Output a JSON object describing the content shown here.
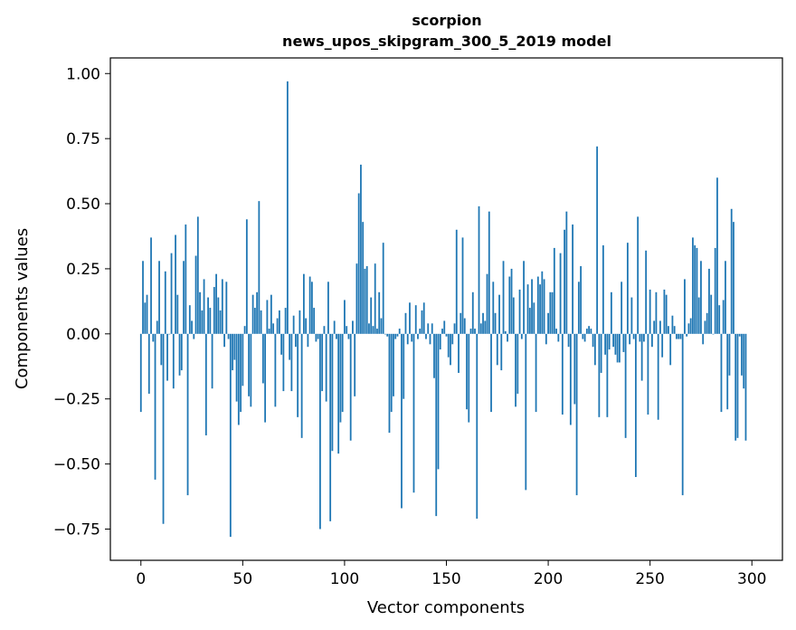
{
  "chart_data": {
    "type": "bar",
    "title": "scorpion",
    "subtitle": "news_upos_skipgram_300_5_2019 model",
    "xlabel": "Vector components",
    "ylabel": "Components values",
    "xlim": [
      -15,
      315
    ],
    "ylim": [
      -0.87,
      1.06
    ],
    "xticks": [
      0,
      50,
      100,
      150,
      200,
      250,
      300
    ],
    "yticks": [
      -0.75,
      -0.5,
      -0.25,
      0.0,
      0.25,
      0.5,
      0.75,
      1.0
    ],
    "xtick_labels": [
      "0",
      "50",
      "100",
      "150",
      "200",
      "250",
      "300"
    ],
    "ytick_labels": [
      "−0.75",
      "−0.50",
      "−0.25",
      "0.00",
      "0.25",
      "0.50",
      "0.75",
      "1.00"
    ],
    "bar_color": "#1f77b4",
    "grid": false,
    "values": [
      -0.3,
      0.28,
      0.12,
      0.15,
      -0.23,
      0.37,
      -0.03,
      -0.56,
      0.05,
      0.28,
      -0.12,
      -0.73,
      0.24,
      -0.18,
      0.0,
      0.31,
      -0.21,
      0.38,
      0.15,
      -0.16,
      -0.14,
      0.28,
      0.42,
      -0.62,
      0.11,
      0.05,
      -0.02,
      0.3,
      0.45,
      0.16,
      0.09,
      0.21,
      -0.39,
      0.14,
      0.1,
      -0.21,
      0.18,
      0.23,
      0.14,
      0.09,
      0.21,
      -0.05,
      0.2,
      -0.02,
      -0.78,
      -0.14,
      -0.1,
      -0.26,
      -0.35,
      -0.3,
      -0.2,
      0.03,
      0.44,
      -0.24,
      -0.28,
      0.15,
      0.1,
      0.16,
      0.51,
      0.09,
      -0.19,
      -0.34,
      0.13,
      0.02,
      0.15,
      0.04,
      -0.28,
      0.06,
      0.09,
      -0.08,
      -0.22,
      0.1,
      0.97,
      -0.1,
      -0.22,
      0.07,
      -0.05,
      -0.32,
      0.09,
      -0.4,
      0.23,
      0.06,
      -0.05,
      0.22,
      0.2,
      0.1,
      -0.03,
      -0.02,
      -0.75,
      -0.22,
      0.03,
      -0.26,
      0.2,
      -0.72,
      -0.45,
      0.05,
      -0.02,
      -0.46,
      -0.34,
      -0.3,
      0.13,
      0.03,
      -0.02,
      -0.41,
      0.05,
      -0.24,
      0.27,
      0.54,
      0.65,
      0.43,
      0.25,
      0.26,
      0.04,
      0.14,
      0.03,
      0.27,
      0.02,
      0.16,
      0.06,
      0.35,
      0.0,
      -0.01,
      -0.38,
      -0.3,
      -0.24,
      -0.02,
      -0.01,
      0.02,
      -0.67,
      -0.25,
      0.08,
      -0.04,
      0.12,
      -0.03,
      -0.61,
      0.11,
      -0.02,
      0.02,
      0.09,
      0.12,
      -0.02,
      0.04,
      -0.04,
      0.04,
      -0.17,
      -0.7,
      -0.52,
      -0.06,
      0.02,
      0.05,
      -0.01,
      -0.09,
      -0.12,
      -0.04,
      0.04,
      0.4,
      -0.15,
      0.08,
      0.37,
      0.06,
      -0.29,
      -0.34,
      0.02,
      0.16,
      0.02,
      -0.71,
      0.49,
      0.04,
      0.08,
      0.05,
      0.23,
      0.47,
      -0.3,
      0.2,
      0.08,
      -0.12,
      0.15,
      -0.14,
      0.28,
      0.01,
      -0.03,
      0.22,
      0.25,
      0.14,
      -0.28,
      -0.23,
      0.17,
      -0.02,
      0.28,
      -0.6,
      0.19,
      0.1,
      0.21,
      0.12,
      -0.3,
      0.22,
      0.19,
      0.24,
      0.21,
      -0.04,
      0.08,
      0.16,
      0.16,
      0.33,
      0.02,
      -0.03,
      0.31,
      -0.31,
      0.4,
      0.47,
      -0.05,
      -0.35,
      0.42,
      -0.27,
      -0.62,
      0.2,
      0.26,
      -0.02,
      -0.03,
      0.02,
      0.03,
      0.02,
      -0.05,
      -0.12,
      0.72,
      -0.32,
      -0.15,
      0.34,
      -0.08,
      -0.32,
      -0.06,
      0.16,
      -0.05,
      -0.08,
      -0.11,
      -0.11,
      0.2,
      -0.07,
      -0.4,
      0.35,
      -0.04,
      0.14,
      -0.02,
      -0.55,
      0.45,
      -0.03,
      -0.18,
      -0.03,
      0.32,
      -0.31,
      0.17,
      -0.05,
      0.05,
      0.16,
      -0.33,
      0.05,
      -0.09,
      0.17,
      0.15,
      0.03,
      -0.12,
      0.07,
      0.03,
      -0.02,
      -0.02,
      -0.02,
      -0.62,
      0.21,
      -0.01,
      0.04,
      0.06,
      0.37,
      0.34,
      0.33,
      0.14,
      0.28,
      -0.04,
      0.05,
      0.08,
      0.25,
      0.15,
      0.0,
      0.33,
      0.6,
      0.11,
      -0.3,
      0.13,
      0.28,
      -0.29,
      -0.16,
      0.48,
      0.43,
      -0.41,
      -0.4,
      -0.01,
      -0.16,
      -0.21,
      -0.41
    ]
  }
}
